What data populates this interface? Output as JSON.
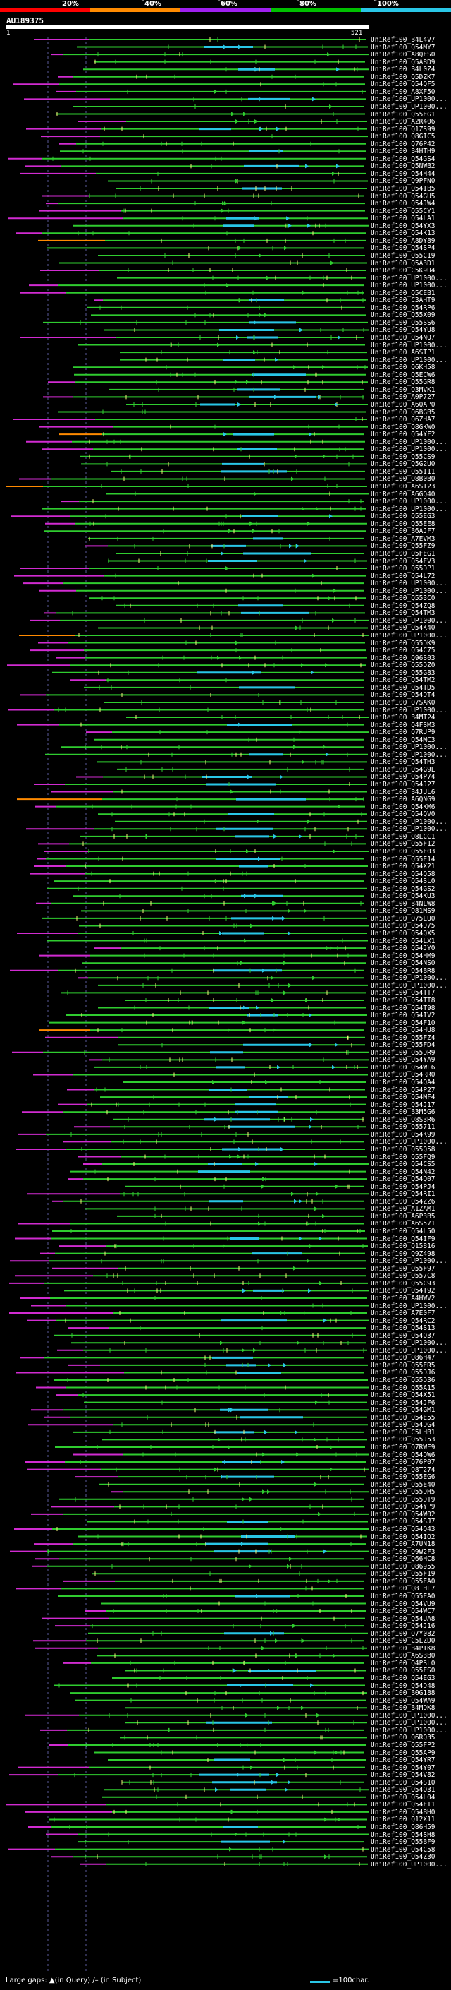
{
  "legend": {
    "ticks": [
      "20%",
      "˜40%",
      "˜60%",
      "˜80%",
      "˜100%"
    ],
    "colors": [
      "#ff0000",
      "#ff8a00",
      "#a020f0",
      "#00c000",
      "#29c6e6"
    ]
  },
  "query": {
    "id": "AU189375",
    "start": "1",
    "end": "521"
  },
  "colors": {
    "green": "#2fcc2f",
    "blue": "#29c6e6",
    "magenta": "#d12bd1",
    "orange": "#ff8a00",
    "yellow": "#f2f27a",
    "gridline": "#5a5a9a"
  },
  "hits": [
    "UniRef100_B4L4V7",
    "UniRef100_Q54MY7",
    "UniRef100_A8QFS0",
    "UniRef100_Q5A8D9",
    "UniRef100_B4L0Z4",
    "UniRef100_Q5DZK7",
    "UniRef100_Q54QF5",
    "UniRef100_A8XF50",
    "UniRef100_UP1000...",
    "UniRef100_UP1000...",
    "UniRef100_Q55EG1",
    "UniRef100_A2R406",
    "UniRef100_Q1ZS99",
    "UniRef100_Q8GIC5",
    "UniRef100_Q76P42",
    "UniRef100_B4HTH9",
    "UniRef100_Q54GS4",
    "UniRef100_Q5NWB2",
    "UniRef100_Q54H44",
    "UniRef100_Q9PFN0",
    "UniRef100_Q54IB5",
    "UniRef100_Q54GU5",
    "UniRef100_Q54JW4",
    "UniRef100_Q55CY1",
    "UniRef100_Q54LA1",
    "UniRef100_Q54YX3",
    "UniRef100_Q54K13",
    "UniRef100_A8DY89",
    "UniRef100_Q54SP4",
    "UniRef100_Q55C19",
    "UniRef100_Q5A3D1",
    "UniRef100_C5K9U4",
    "UniRef100_UP1000...",
    "UniRef100_UP1000...",
    "UniRef100_Q5CEB1",
    "UniRef100_C3AHT9",
    "UniRef100_Q54RP6",
    "UniRef100_Q55X09",
    "UniRef100_Q55SS6",
    "UniRef100_Q54YU8",
    "UniRef100_Q54NQ7",
    "UniRef100_UP1000...",
    "UniRef100_A6STP1",
    "UniRef100_UP1000...",
    "UniRef100_Q6KH58",
    "UniRef100_Q5ECW6",
    "UniRef100_Q55GR8",
    "UniRef100_Q3MVK1",
    "UniRef100_A0P727",
    "UniRef100_A6QAP0",
    "UniRef100_Q6BGB5",
    "UniRef100_Q6ZHA7",
    "UniRef100_Q8GKW0",
    "UniRef100_Q54YF2",
    "UniRef100_UP1000...",
    "UniRef100_UP1000...",
    "UniRef100_Q55CS9",
    "UniRef100_Q5G2U0",
    "UniRef100_Q55I11",
    "UniRef100_Q8B0B0",
    "UniRef100_A6ST23",
    "UniRef100_A6GQ40",
    "UniRef100_UP1000...",
    "UniRef100_UP1000...",
    "UniRef100_Q55EG3",
    "UniRef100_Q55EE8",
    "UniRef100_B6AJF7",
    "UniRef100_A7EVM3",
    "UniRef100_Q55FZ9",
    "UniRef100_Q5FEG1",
    "UniRef100_Q54FV3",
    "UniRef100_Q55DP1",
    "UniRef100_Q54L72",
    "UniRef100_UP1000...",
    "UniRef100_UP1000...",
    "UniRef100_Q553C0",
    "UniRef100_Q54ZQ8",
    "UniRef100_Q54TM3",
    "UniRef100_UP1000...",
    "UniRef100_Q54K40",
    "UniRef100_UP1000...",
    "UniRef100_Q55DK9",
    "UniRef100_Q54C75",
    "UniRef100_Q96S03",
    "UniRef100_Q55DZ0",
    "UniRef100_Q55G83",
    "UniRef100_Q54TM2",
    "UniRef100_Q54TD5",
    "UniRef100_Q54DT4",
    "UniRef100_Q7SAK0",
    "UniRef100_UP1000...",
    "UniRef100_B4MT24",
    "UniRef100_Q4FSM3",
    "UniRef100_Q7RUP9",
    "UniRef100_Q54MC3",
    "UniRef100_UP1000...",
    "UniRef100_UP1000...",
    "UniRef100_Q54TH3",
    "UniRef100_Q54G9L",
    "UniRef100_Q54P74",
    "UniRef100_Q54J27",
    "UniRef100_B4JUL6",
    "UniRef100_A6QNG9",
    "UniRef100_Q54KM6",
    "UniRef100_Q54QV0",
    "UniRef100_UP1000...",
    "UniRef100_UP1000...",
    "UniRef100_Q8LCC1",
    "UniRef100_Q55F12",
    "UniRef100_Q55F03",
    "UniRef100_Q55E14",
    "UniRef100_Q54X21",
    "UniRef100_Q54Q58",
    "UniRef100_Q54SL0",
    "UniRef100_Q54GS2",
    "UniRef100_Q54KU3",
    "UniRef100_B4NLW8",
    "UniRef100_Q81MS9",
    "UniRef100_Q75LU0",
    "UniRef100_Q54D75",
    "UniRef100_Q54QX5",
    "UniRef100_Q54LX1",
    "UniRef100_Q54JY0",
    "UniRef100_Q54HM9",
    "UniRef100_Q54NS0",
    "UniRef100_Q54BR8",
    "UniRef100_UP1000...",
    "UniRef100_UP1000...",
    "UniRef100_Q54TT7",
    "UniRef100_Q54TT8",
    "UniRef100_Q54T98",
    "UniRef100_Q54IV2",
    "UniRef100_Q54F10",
    "UniRef100_Q54HU8",
    "UniRef100_Q55FZ4",
    "UniRef100_Q55FD4",
    "UniRef100_Q55DR9",
    "UniRef100_Q54YA9",
    "UniRef100_Q54WL6",
    "UniRef100_Q54RR0",
    "UniRef100_Q54QA4",
    "UniRef100_Q54P27",
    "UniRef100_Q54MF4",
    "UniRef100_Q54J17",
    "UniRef100_B3M5G6",
    "UniRef100_Q8S3R6",
    "UniRef100_Q55711",
    "UniRef100_Q54K99",
    "UniRef100_UP1000...",
    "UniRef100_Q55Q58",
    "UniRef100_Q55FQ9",
    "UniRef100_Q54CS5",
    "UniRef100_Q54N42",
    "UniRef100_Q54Q07",
    "UniRef100_Q54PJ4",
    "UniRef100_Q54RI1",
    "UniRef100_Q54ZZ6",
    "UniRef100_A1ZAM1",
    "UniRef100_A6P3B5",
    "UniRef100_A6S571",
    "UniRef100_Q54L50",
    "UniRef100_Q54IF9",
    "UniRef100_Q15816",
    "UniRef100_Q9Z498",
    "UniRef100_UP1000...",
    "UniRef100_Q55F97",
    "UniRef100_Q557C8",
    "UniRef100_Q55C93",
    "UniRef100_Q54T92",
    "UniRef100_A4HWV2",
    "UniRef100_UP1000...",
    "UniRef100_A7E0F7",
    "UniRef100_Q54RC2",
    "UniRef100_Q54S13",
    "UniRef100_Q54Q37",
    "UniRef100_UP1000...",
    "UniRef100_UP1000...",
    "UniRef100_Q86H47",
    "UniRef100_Q55ER5",
    "UniRef100_Q55DJ6",
    "UniRef100_Q55D36",
    "UniRef100_Q55A15",
    "UniRef100_Q54X51",
    "UniRef100_Q54JF6",
    "UniRef100_Q54GM1",
    "UniRef100_Q54E55",
    "UniRef100_Q54DG4",
    "UniRef100_C5LHB1",
    "UniRef100_Q55J53",
    "UniRef100_Q7RWE9",
    "UniRef100_Q54DW6",
    "UniRef100_Q76P07",
    "UniRef100_Q8T274",
    "UniRef100_Q55EG6",
    "UniRef100_Q55E40",
    "UniRef100_Q55DH5",
    "UniRef100_Q55DT9",
    "UniRef100_Q54YP9",
    "UniRef100_Q54W02",
    "UniRef100_Q54SJ7",
    "UniRef100_Q54Q43",
    "UniRef100_Q54IO2",
    "UniRef100_A7UN18",
    "UniRef100_Q9W2F3",
    "UniRef100_Q66HC8",
    "UniRef100_Q86955",
    "UniRef100_Q55F19",
    "UniRef100_Q55EA0",
    "UniRef100_Q8IHL7",
    "UniRef100_Q55EA0",
    "UniRef100_Q54VU9",
    "UniRef100_Q54WC7",
    "UniRef100_Q54UA8",
    "UniRef100_Q54J16",
    "UniRef100_Q7Y082",
    "UniRef100_C5LZD0",
    "UniRef100_B4PTK8",
    "UniRef100_A6S3B0",
    "UniRef100_Q4PSL0",
    "UniRef100_Q55FS0",
    "UniRef100_Q54EG3",
    "UniRef100_Q54D48",
    "UniRef100_B0G188",
    "UniRef100_Q54WA9",
    "UniRef100_B4MDK8",
    "UniRef100_UP1000...",
    "UniRef100_UP1000...",
    "UniRef100_UP1000...",
    "UniRef100_Q6RQ35",
    "UniRef100_Q55FP2",
    "UniRef100_Q55AP9",
    "UniRef100_Q54YR7",
    "UniRef100_Q54Y07",
    "UniRef100_Q54V82",
    "UniRef100_Q54S10",
    "UniRef100_Q54Q31",
    "UniRef100_Q54L04",
    "UniRef100_Q54FT1",
    "UniRef100_Q54BH0",
    "UniRef100_Q12X11",
    "UniRef100_Q86H59",
    "UniRef100_Q54SH8",
    "UniRef100_Q55BF9",
    "UniRef100_Q54C58",
    "UniRef100_Q54Z30",
    "UniRef100_UP1000..."
  ],
  "footer": {
    "large_gaps": "Large gaps:",
    "in_query": "▲(in Query)",
    "in_subject": "/– (in Subject)",
    "scale": "=100char."
  }
}
